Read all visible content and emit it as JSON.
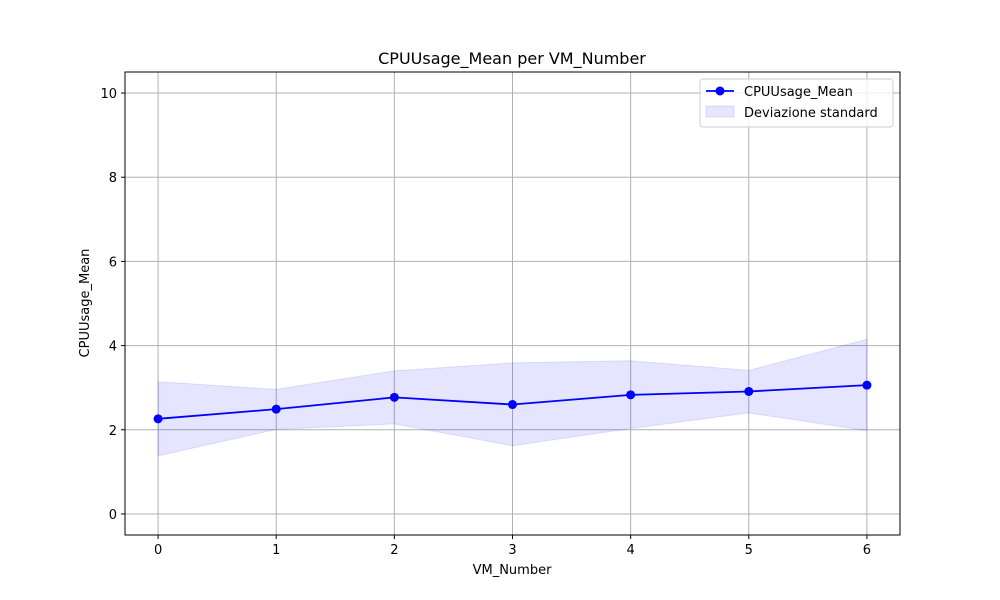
{
  "chart_data": {
    "type": "line",
    "title": "CPUUsage_Mean per VM_Number",
    "xlabel": "VM_Number",
    "ylabel": "CPUUsage_Mean",
    "xlim": [
      -0.28,
      6.28
    ],
    "ylim": [
      -0.5,
      10.5
    ],
    "x_ticks": [
      "0",
      "1",
      "2",
      "3",
      "4",
      "5",
      "6"
    ],
    "y_ticks": [
      "0",
      "2",
      "4",
      "6",
      "8",
      "10"
    ],
    "grid": true,
    "legend_position": "top-right",
    "x": [
      0,
      1,
      2,
      3,
      4,
      5,
      6
    ],
    "series": [
      {
        "name": "CPUUsage_Mean",
        "values": [
          2.26,
          2.49,
          2.77,
          2.6,
          2.83,
          2.91,
          3.06
        ],
        "color": "#0000ff",
        "marker": "circle"
      }
    ],
    "band": {
      "name": "Deviazione standard",
      "lower": [
        1.38,
        2.01,
        2.14,
        1.62,
        2.03,
        2.4,
        1.98
      ],
      "upper": [
        3.14,
        2.96,
        3.4,
        3.59,
        3.64,
        3.41,
        4.15
      ],
      "color": "#0000ff",
      "opacity": 0.1
    }
  }
}
